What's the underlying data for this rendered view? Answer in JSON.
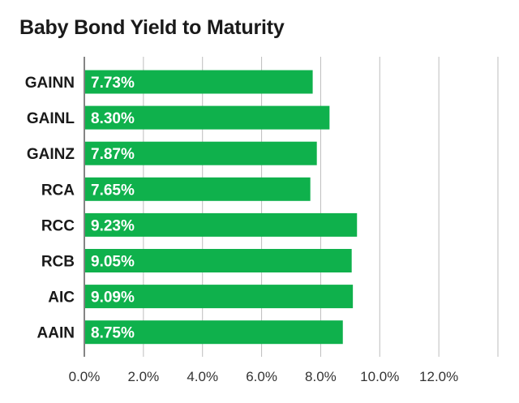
{
  "chart_data": {
    "type": "bar",
    "orientation": "horizontal",
    "title": "Baby Bond Yield to Maturity",
    "xlabel": "",
    "ylabel": "",
    "categories": [
      "GAINN",
      "GAINL",
      "GAINZ",
      "RCA",
      "RCC",
      "RCB",
      "AIC",
      "AAIN"
    ],
    "values": [
      7.73,
      8.3,
      7.87,
      7.65,
      9.23,
      9.05,
      9.09,
      8.75
    ],
    "value_labels": [
      "7.73%",
      "8.30%",
      "7.87%",
      "7.65%",
      "9.23%",
      "9.05%",
      "9.09%",
      "8.75%"
    ],
    "xlim": [
      0,
      14
    ],
    "xticks": [
      0,
      2,
      4,
      6,
      8,
      10,
      12
    ],
    "xtick_labels": [
      "0.0%",
      "2.0%",
      "4.0%",
      "6.0%",
      "8.0%",
      "10.0%",
      "12.0%"
    ],
    "grid": true,
    "legend": "none",
    "bar_color": "#0fb14c",
    "grid_color": "#bdbdbd",
    "axis_color": "#333333"
  }
}
